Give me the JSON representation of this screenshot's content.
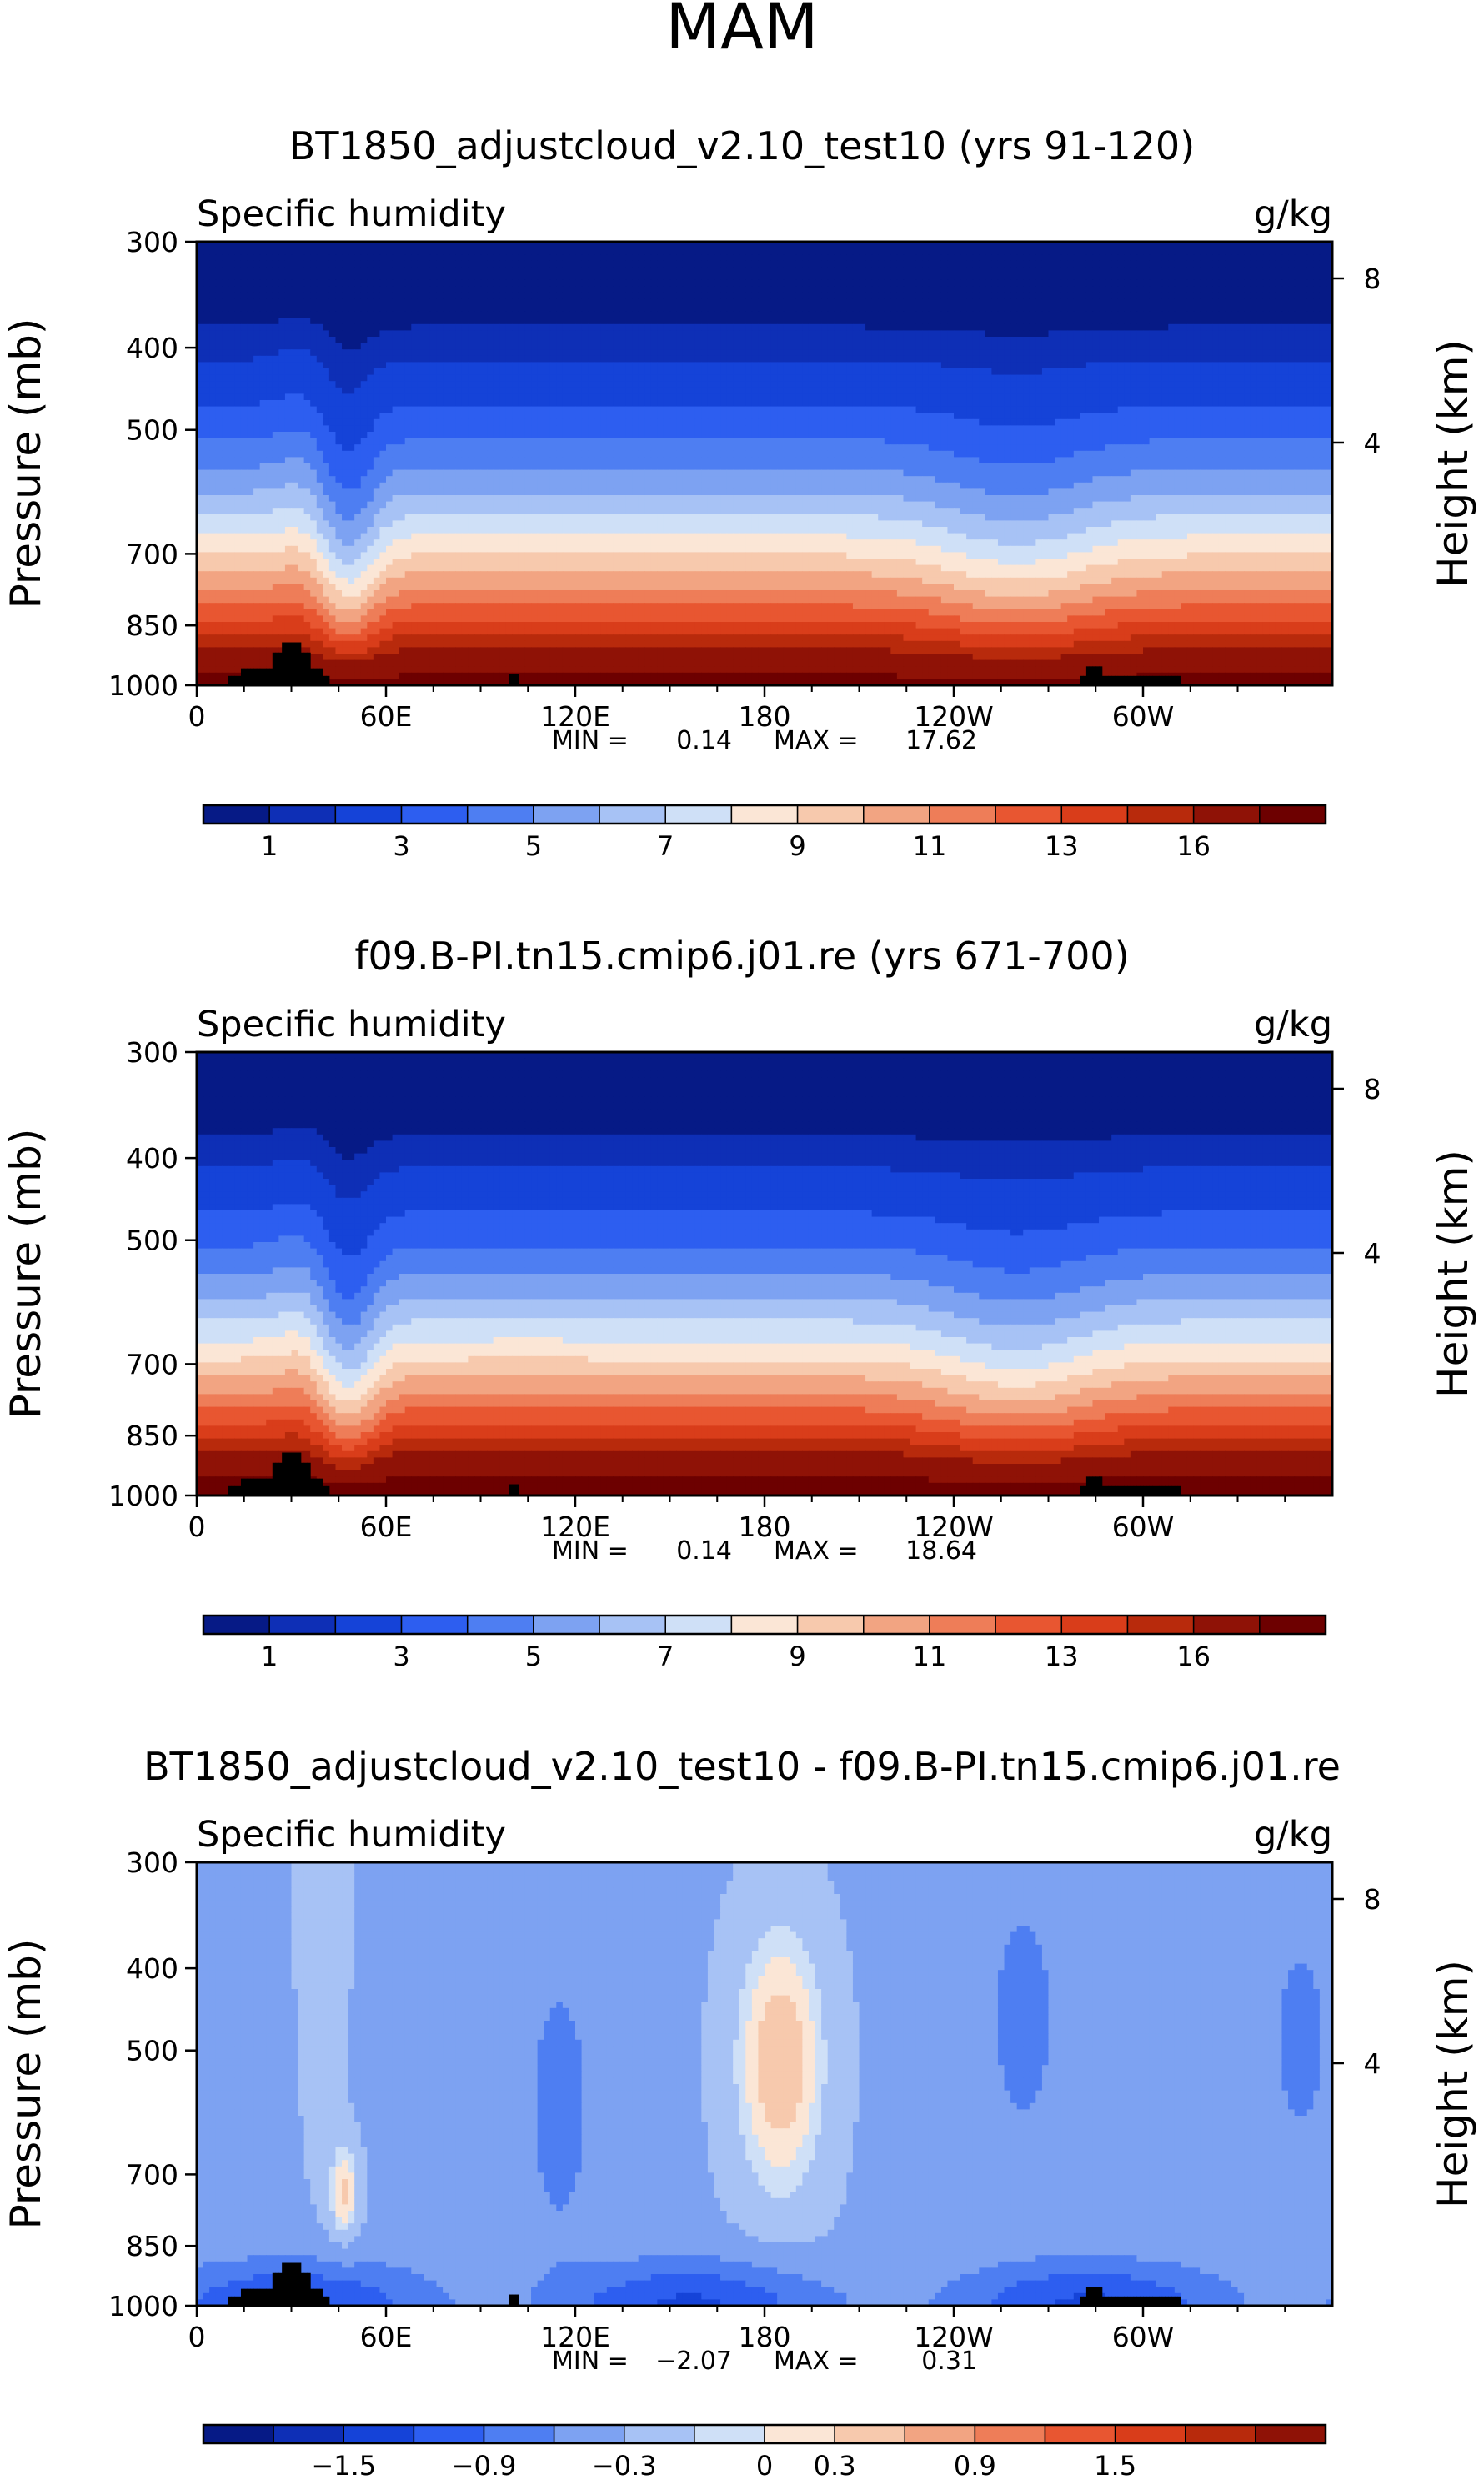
{
  "figure_title": "MAM",
  "chart_data": [
    {
      "type": "heatmap",
      "title": "BT1850_adjustcloud_v2.10_test10 (yrs 91-120)",
      "left_label": "Specific humidity",
      "right_label": "g/kg",
      "xlabel": "",
      "ylabel": "Pressure (mb)",
      "y2label": "Height (km)",
      "xticks": [
        "0",
        "60E",
        "120E",
        "180",
        "120W",
        "60W"
      ],
      "xtick_lon": [
        0,
        60,
        120,
        180,
        240,
        300
      ],
      "xlim": [
        0,
        360
      ],
      "yticks": [
        "300",
        "400",
        "500",
        "700",
        "850",
        "1000"
      ],
      "ytick_p": [
        300,
        400,
        500,
        700,
        850,
        1000
      ],
      "ylim": [
        300,
        1000
      ],
      "y2ticks": [
        "8",
        "4"
      ],
      "y2tick_km": [
        8,
        4
      ],
      "min_label": "MIN =",
      "min_value": "0.14",
      "max_label": "MAX =",
      "max_value": "17.62",
      "field": "abs",
      "colorbar_ticks": [
        "1",
        "3",
        "5",
        "7",
        "9",
        "11",
        "13",
        "16"
      ],
      "colorbar_tick_bounds": [
        1,
        3,
        5,
        7,
        9,
        11,
        13,
        15
      ],
      "levels": [
        0.5,
        1,
        2,
        3,
        4,
        5,
        6,
        7,
        8,
        9,
        10,
        11,
        12,
        13,
        14,
        16
      ],
      "colors": [
        "#061a86",
        "#0e2fb6",
        "#1543d8",
        "#2d5ef0",
        "#4e7ef2",
        "#7da2f2",
        "#a7c2f5",
        "#cfe0f7",
        "#fbe6d6",
        "#f7c9ad",
        "#f2a482",
        "#ee7d58",
        "#e85631",
        "#d93d1a",
        "#b82a0c",
        "#8f1206",
        "#6d0000"
      ]
    },
    {
      "type": "heatmap",
      "title": "f09.B-PI.tn15.cmip6.j01.re (yrs 671-700)",
      "left_label": "Specific humidity",
      "right_label": "g/kg",
      "xlabel": "",
      "ylabel": "Pressure (mb)",
      "y2label": "Height (km)",
      "xticks": [
        "0",
        "60E",
        "120E",
        "180",
        "120W",
        "60W"
      ],
      "xtick_lon": [
        0,
        60,
        120,
        180,
        240,
        300
      ],
      "xlim": [
        0,
        360
      ],
      "yticks": [
        "300",
        "400",
        "500",
        "700",
        "850",
        "1000"
      ],
      "ytick_p": [
        300,
        400,
        500,
        700,
        850,
        1000
      ],
      "ylim": [
        300,
        1000
      ],
      "y2ticks": [
        "8",
        "4"
      ],
      "y2tick_km": [
        8,
        4
      ],
      "min_label": "MIN =",
      "min_value": "0.14",
      "max_label": "MAX =",
      "max_value": "18.64",
      "field": "abs",
      "colorbar_ticks": [
        "1",
        "3",
        "5",
        "7",
        "9",
        "11",
        "13",
        "16"
      ],
      "colorbar_tick_bounds": [
        1,
        3,
        5,
        7,
        9,
        11,
        13,
        15
      ],
      "levels": [
        0.5,
        1,
        2,
        3,
        4,
        5,
        6,
        7,
        8,
        9,
        10,
        11,
        12,
        13,
        14,
        16
      ],
      "colors": [
        "#061a86",
        "#0e2fb6",
        "#1543d8",
        "#2d5ef0",
        "#4e7ef2",
        "#7da2f2",
        "#a7c2f5",
        "#cfe0f7",
        "#fbe6d6",
        "#f7c9ad",
        "#f2a482",
        "#ee7d58",
        "#e85631",
        "#d93d1a",
        "#b82a0c",
        "#8f1206",
        "#6d0000"
      ]
    },
    {
      "type": "heatmap",
      "title": "BT1850_adjustcloud_v2.10_test10 - f09.B-PI.tn15.cmip6.j01.re",
      "left_label": "Specific humidity",
      "right_label": "g/kg",
      "xlabel": "",
      "ylabel": "Pressure (mb)",
      "y2label": "Height (km)",
      "xticks": [
        "0",
        "60E",
        "120E",
        "180",
        "120W",
        "60W"
      ],
      "xtick_lon": [
        0,
        60,
        120,
        180,
        240,
        300
      ],
      "xlim": [
        0,
        360
      ],
      "yticks": [
        "300",
        "400",
        "500",
        "700",
        "850",
        "1000"
      ],
      "ytick_p": [
        300,
        400,
        500,
        700,
        850,
        1000
      ],
      "ylim": [
        300,
        1000
      ],
      "y2ticks": [
        "8",
        "4"
      ],
      "y2tick_km": [
        8,
        4
      ],
      "min_label": "MIN =",
      "min_value": "−2.07",
      "max_label": "MAX =",
      "max_value": "0.31",
      "field": "diff",
      "colorbar_ticks": [
        "−1.5",
        "−0.9",
        "−0.3",
        "0",
        "0.3",
        "0.9",
        "1.5"
      ],
      "colorbar_tick_bounds": [
        2,
        4,
        6,
        8,
        9,
        11,
        13
      ],
      "levels": [
        -1.8,
        -1.5,
        -1.2,
        -0.9,
        -0.6,
        -0.3,
        -0.1,
        0,
        0.1,
        0.3,
        0.6,
        0.9,
        1.2,
        1.5,
        1.8
      ],
      "colors": [
        "#061a86",
        "#0e2fb6",
        "#1543d8",
        "#2d5ef0",
        "#4e7ef2",
        "#7da2f2",
        "#a7c2f5",
        "#cfe0f7",
        "#fbe6d6",
        "#f7c9ad",
        "#f2a482",
        "#ee7d58",
        "#e85631",
        "#d93d1a",
        "#b82a0c",
        "#8f1206"
      ]
    }
  ]
}
